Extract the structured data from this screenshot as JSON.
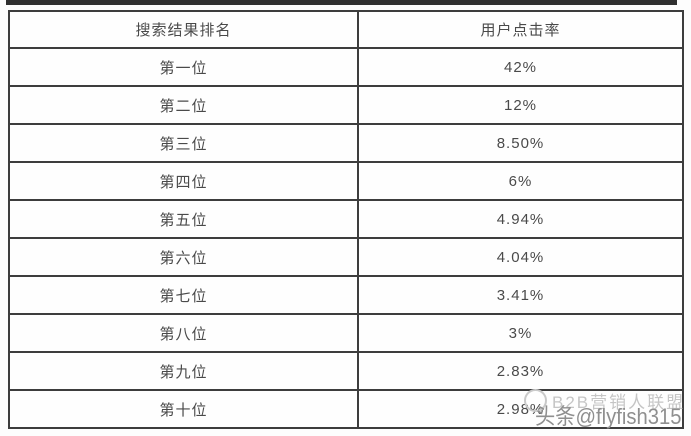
{
  "table": {
    "headers": {
      "rank": "搜索结果排名",
      "ctr": "用户点击率"
    },
    "rows": [
      {
        "rank": "第一位",
        "ctr": "42%"
      },
      {
        "rank": "第二位",
        "ctr": "12%"
      },
      {
        "rank": "第三位",
        "ctr": "8.50%"
      },
      {
        "rank": "第四位",
        "ctr": "6%"
      },
      {
        "rank": "第五位",
        "ctr": "4.94%"
      },
      {
        "rank": "第六位",
        "ctr": "4.04%"
      },
      {
        "rank": "第七位",
        "ctr": "3.41%"
      },
      {
        "rank": "第八位",
        "ctr": "3%"
      },
      {
        "rank": "第九位",
        "ctr": "2.83%"
      },
      {
        "rank": "第十位",
        "ctr": "2.98%"
      }
    ]
  },
  "watermark": {
    "faint_text": "B2B营销人联盟",
    "main_text": "头条@flyfish315"
  },
  "colors": {
    "border": "#3d3d3d",
    "text": "#4a4a4a",
    "top_bar": "#303030",
    "watermark_faint": "#c5c5c5",
    "watermark_main": "#8f8f8f",
    "background": "#fdfdfd"
  },
  "chart_data": {
    "type": "table",
    "title": "",
    "columns": [
      "搜索结果排名",
      "用户点击率"
    ],
    "categories": [
      "第一位",
      "第二位",
      "第三位",
      "第四位",
      "第五位",
      "第六位",
      "第七位",
      "第八位",
      "第九位",
      "第十位"
    ],
    "values": [
      42,
      12,
      8.5,
      6,
      4.94,
      4.04,
      3.41,
      3,
      2.83,
      2.98
    ],
    "values_text": [
      "42%",
      "12%",
      "8.50%",
      "6%",
      "4.94%",
      "4.04%",
      "3.41%",
      "3%",
      "2.83%",
      "2.98%"
    ]
  }
}
